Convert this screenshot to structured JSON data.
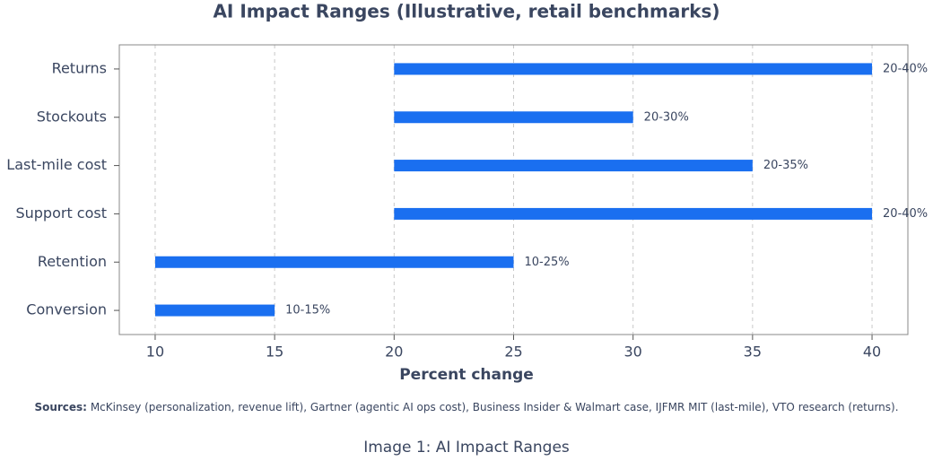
{
  "chart_data": {
    "type": "range",
    "title": "AI Impact Ranges (Illustrative, retail benchmarks)",
    "x_label": "Percent change",
    "categories": [
      "Returns",
      "Stockouts",
      "Last-mile cost",
      "Support cost",
      "Retention",
      "Conversion"
    ],
    "ranges": [
      [
        20,
        40
      ],
      [
        20,
        30
      ],
      [
        20,
        35
      ],
      [
        20,
        40
      ],
      [
        10,
        25
      ],
      [
        10,
        15
      ]
    ],
    "value_labels": [
      "20-40%",
      "20-30%",
      "20-35%",
      "20-40%",
      "10-25%",
      "10-15%"
    ],
    "color": "#1a6ff0",
    "xlim": [
      8.5,
      41.5
    ],
    "xticks": [
      10,
      15,
      20,
      25,
      30,
      35,
      40
    ],
    "grid": true,
    "sources_label": "Sources:",
    "sources": "McKinsey (personalization, revenue lift), Gartner (agentic AI ops cost), Business Insider & Walmart case, IJFMR MIT (last-mile), VTO research (returns).",
    "caption": "Image 1: AI Impact Ranges"
  }
}
